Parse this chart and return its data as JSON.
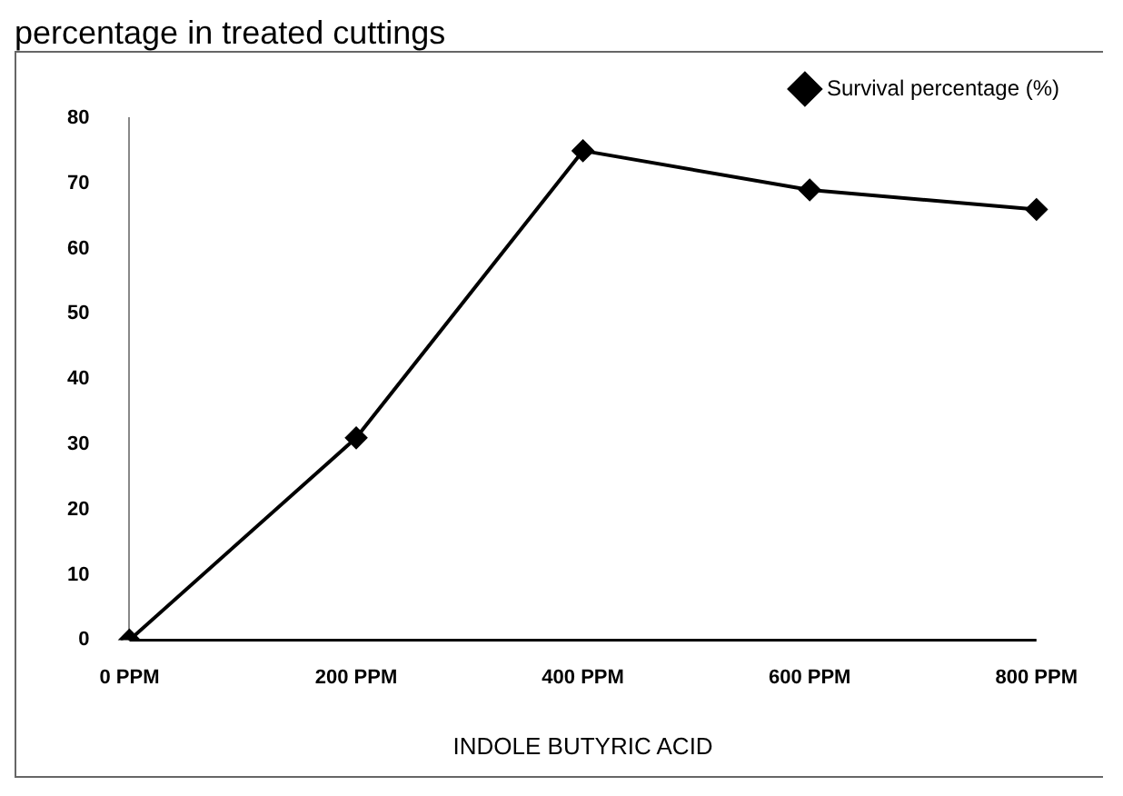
{
  "chart_data": {
    "type": "line",
    "annotations": [
      "percentage in treated cuttings"
    ],
    "xlabel": "INDOLE BUTYRIC ACID",
    "categories": [
      "0 PPM",
      "200 PPM",
      "400 PPM",
      "600 PPM",
      "800 PPM"
    ],
    "series": [
      {
        "name": "Survival percentage (%)",
        "color": "#000000",
        "values": [
          0,
          31,
          75,
          69,
          66
        ]
      }
    ],
    "ylim": [
      0,
      80
    ],
    "yticks": [
      0,
      10,
      20,
      30,
      40,
      50,
      60,
      70,
      80
    ],
    "grid": false,
    "legend": "top right",
    "marker": "diamond",
    "line_style": "solid"
  }
}
